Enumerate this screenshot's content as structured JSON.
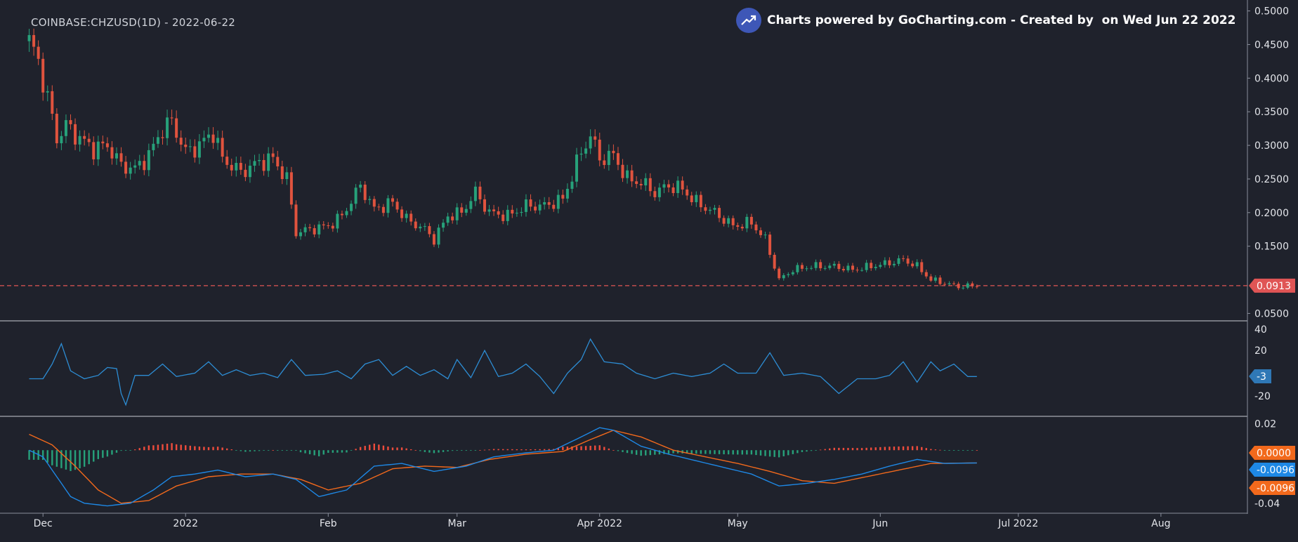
{
  "header": {
    "symbol_title": "COINBASE:CHZUSD(1D) - 2022-06-22",
    "brand_text": "Charts powered by GoCharting.com - Created by  on Wed Jun 22 2022"
  },
  "colors": {
    "background": "#1f222c",
    "up": "#27a17a",
    "down": "#e0533e",
    "price_line": "#e05555",
    "cci": "#2d8dd4",
    "macd": "#1e88e5",
    "signal": "#f2691c",
    "hist_up": "#ee4c3c",
    "hist_down": "#27a17a",
    "axis_text": "#e3e5ea",
    "separator": "#c8ccd4"
  },
  "chart_data": [
    {
      "type": "candlestick",
      "panel": "price",
      "x_labels": [
        "Dec",
        "2022",
        "Feb",
        "Mar",
        "Apr 2022",
        "May",
        "Jun",
        "Jul 2022",
        "Aug"
      ],
      "y_ticks": [
        "0.5000",
        "0.4500",
        "0.4000",
        "0.3500",
        "0.3000",
        "0.2500",
        "0.2000",
        "0.1500",
        "0.0500"
      ],
      "ylim": [
        0.04,
        0.51
      ],
      "last_price_label": "0.0913",
      "last_price": 0.0913,
      "close_path": [
        [
          "2021-11-28",
          0.455
        ],
        [
          "2021-11-30",
          0.425
        ],
        [
          "2021-12-02",
          0.37
        ],
        [
          "2021-12-04",
          0.31
        ],
        [
          "2021-12-06",
          0.33
        ],
        [
          "2021-12-09",
          0.31
        ],
        [
          "2021-12-12",
          0.295
        ],
        [
          "2021-12-15",
          0.3
        ],
        [
          "2021-12-18",
          0.27
        ],
        [
          "2021-12-21",
          0.265
        ],
        [
          "2021-12-24",
          0.285
        ],
        [
          "2021-12-27",
          0.325
        ],
        [
          "2021-12-29",
          0.335
        ],
        [
          "2022-01-01",
          0.29
        ],
        [
          "2022-01-04",
          0.3
        ],
        [
          "2022-01-07",
          0.32
        ],
        [
          "2022-01-09",
          0.28
        ],
        [
          "2022-01-13",
          0.26
        ],
        [
          "2022-01-17",
          0.275
        ],
        [
          "2022-01-20",
          0.28
        ],
        [
          "2022-01-23",
          0.25
        ],
        [
          "2022-01-25",
          0.17
        ],
        [
          "2022-01-28",
          0.175
        ],
        [
          "2022-02-01",
          0.18
        ],
        [
          "2022-02-04",
          0.195
        ],
        [
          "2022-02-08",
          0.24
        ],
        [
          "2022-02-11",
          0.205
        ],
        [
          "2022-02-15",
          0.215
        ],
        [
          "2022-02-18",
          0.19
        ],
        [
          "2022-02-22",
          0.175
        ],
        [
          "2022-02-24",
          0.16
        ],
        [
          "2022-02-27",
          0.195
        ],
        [
          "2022-03-02",
          0.2
        ],
        [
          "2022-03-05",
          0.23
        ],
        [
          "2022-03-08",
          0.2
        ],
        [
          "2022-03-12",
          0.195
        ],
        [
          "2022-03-16",
          0.21
        ],
        [
          "2022-03-20",
          0.21
        ],
        [
          "2022-03-24",
          0.22
        ],
        [
          "2022-03-28",
          0.29
        ],
        [
          "2022-03-30",
          0.315
        ],
        [
          "2022-04-01",
          0.28
        ],
        [
          "2022-04-04",
          0.285
        ],
        [
          "2022-04-07",
          0.25
        ],
        [
          "2022-04-10",
          0.245
        ],
        [
          "2022-04-13",
          0.23
        ],
        [
          "2022-04-16",
          0.24
        ],
        [
          "2022-04-19",
          0.235
        ],
        [
          "2022-04-22",
          0.215
        ],
        [
          "2022-04-26",
          0.2
        ],
        [
          "2022-04-30",
          0.18
        ],
        [
          "2022-05-04",
          0.185
        ],
        [
          "2022-05-07",
          0.16
        ],
        [
          "2022-05-10",
          0.1
        ],
        [
          "2022-05-13",
          0.115
        ],
        [
          "2022-05-17",
          0.12
        ],
        [
          "2022-05-22",
          0.12
        ],
        [
          "2022-05-26",
          0.115
        ],
        [
          "2022-05-30",
          0.12
        ],
        [
          "2022-06-03",
          0.125
        ],
        [
          "2022-06-06",
          0.13
        ],
        [
          "2022-06-09",
          0.12
        ],
        [
          "2022-06-12",
          0.1
        ],
        [
          "2022-06-15",
          0.095
        ],
        [
          "2022-06-18",
          0.09
        ],
        [
          "2022-06-22",
          0.0913
        ]
      ]
    },
    {
      "type": "line",
      "panel": "cci",
      "y_ticks": [
        "40",
        "20",
        "-20"
      ],
      "ylim": [
        -35,
        43
      ],
      "last_value_label": "-3",
      "series": [
        {
          "values": [
            [
              "2021-11-28",
              -5
            ],
            [
              "2021-12-01",
              -5
            ],
            [
              "2021-12-03",
              8
            ],
            [
              "2021-12-05",
              26
            ],
            [
              "2021-12-07",
              2
            ],
            [
              "2021-12-10",
              -5
            ],
            [
              "2021-12-13",
              -2
            ],
            [
              "2021-12-15",
              5
            ],
            [
              "2021-12-17",
              4
            ],
            [
              "2021-12-18",
              -18
            ],
            [
              "2021-12-19",
              -28
            ],
            [
              "2021-12-21",
              -2
            ],
            [
              "2021-12-24",
              -2
            ],
            [
              "2021-12-27",
              8
            ],
            [
              "2021-12-30",
              -3
            ],
            [
              "2022-01-03",
              0
            ],
            [
              "2022-01-06",
              10
            ],
            [
              "2022-01-09",
              -2
            ],
            [
              "2022-01-12",
              3
            ],
            [
              "2022-01-15",
              -2
            ],
            [
              "2022-01-18",
              0
            ],
            [
              "2022-01-21",
              -4
            ],
            [
              "2022-01-24",
              12
            ],
            [
              "2022-01-27",
              -2
            ],
            [
              "2022-01-31",
              -1
            ],
            [
              "2022-02-03",
              2
            ],
            [
              "2022-02-06",
              -5
            ],
            [
              "2022-02-09",
              8
            ],
            [
              "2022-02-12",
              12
            ],
            [
              "2022-02-15",
              -2
            ],
            [
              "2022-02-18",
              6
            ],
            [
              "2022-02-21",
              -2
            ],
            [
              "2022-02-24",
              3
            ],
            [
              "2022-02-27",
              -5
            ],
            [
              "2022-03-01",
              12
            ],
            [
              "2022-03-04",
              -4
            ],
            [
              "2022-03-07",
              20
            ],
            [
              "2022-03-10",
              -3
            ],
            [
              "2022-03-13",
              0
            ],
            [
              "2022-03-16",
              8
            ],
            [
              "2022-03-19",
              -3
            ],
            [
              "2022-03-22",
              -18
            ],
            [
              "2022-03-25",
              0
            ],
            [
              "2022-03-28",
              12
            ],
            [
              "2022-03-30",
              30
            ],
            [
              "2022-04-02",
              10
            ],
            [
              "2022-04-06",
              8
            ],
            [
              "2022-04-09",
              0
            ],
            [
              "2022-04-13",
              -5
            ],
            [
              "2022-04-17",
              0
            ],
            [
              "2022-04-21",
              -3
            ],
            [
              "2022-04-25",
              0
            ],
            [
              "2022-04-28",
              8
            ],
            [
              "2022-05-01",
              0
            ],
            [
              "2022-05-05",
              0
            ],
            [
              "2022-05-08",
              18
            ],
            [
              "2022-05-11",
              -2
            ],
            [
              "2022-05-15",
              0
            ],
            [
              "2022-05-19",
              -3
            ],
            [
              "2022-05-23",
              -18
            ],
            [
              "2022-05-27",
              -5
            ],
            [
              "2022-05-31",
              -5
            ],
            [
              "2022-06-03",
              -2
            ],
            [
              "2022-06-06",
              10
            ],
            [
              "2022-06-09",
              -8
            ],
            [
              "2022-06-12",
              10
            ],
            [
              "2022-06-14",
              2
            ],
            [
              "2022-06-17",
              8
            ],
            [
              "2022-06-20",
              -3
            ],
            [
              "2022-06-22",
              -3
            ]
          ]
        }
      ]
    },
    {
      "type": "line+histogram",
      "panel": "macd",
      "y_ticks": [
        "0.02",
        "-0.04"
      ],
      "ylim": [
        -0.047,
        0.025
      ],
      "labels": {
        "histogram": "0.0000",
        "macd": "-0.0096",
        "signal": "-0.0096"
      },
      "series": [
        {
          "values": [
            [
              "2021-11-28",
              0.0
            ],
            [
              "2021-12-01",
              -0.005
            ],
            [
              "2021-12-04",
              -0.02
            ],
            [
              "2021-12-07",
              -0.035
            ],
            [
              "2021-12-10",
              -0.04
            ],
            [
              "2021-12-15",
              -0.042
            ],
            [
              "2021-12-20",
              -0.04
            ],
            [
              "2021-12-25",
              -0.03
            ],
            [
              "2021-12-29",
              -0.02
            ],
            [
              "2022-01-03",
              -0.018
            ],
            [
              "2022-01-08",
              -0.015
            ],
            [
              "2022-01-14",
              -0.02
            ],
            [
              "2022-01-20",
              -0.018
            ],
            [
              "2022-01-25",
              -0.022
            ],
            [
              "2022-01-30",
              -0.035
            ],
            [
              "2022-02-05",
              -0.03
            ],
            [
              "2022-02-11",
              -0.012
            ],
            [
              "2022-02-17",
              -0.01
            ],
            [
              "2022-02-24",
              -0.016
            ],
            [
              "2022-03-03",
              -0.012
            ],
            [
              "2022-03-09",
              -0.005
            ],
            [
              "2022-03-16",
              -0.002
            ],
            [
              "2022-03-22",
              0.0
            ],
            [
              "2022-03-28",
              0.01
            ],
            [
              "2022-04-01",
              0.017
            ],
            [
              "2022-04-04",
              0.015
            ],
            [
              "2022-04-10",
              0.003
            ],
            [
              "2022-04-16",
              -0.003
            ],
            [
              "2022-04-22",
              -0.008
            ],
            [
              "2022-04-28",
              -0.013
            ],
            [
              "2022-05-04",
              -0.018
            ],
            [
              "2022-05-10",
              -0.027
            ],
            [
              "2022-05-16",
              -0.025
            ],
            [
              "2022-05-22",
              -0.022
            ],
            [
              "2022-05-28",
              -0.018
            ],
            [
              "2022-06-03",
              -0.012
            ],
            [
              "2022-06-09",
              -0.007
            ],
            [
              "2022-06-15",
              -0.01
            ],
            [
              "2022-06-22",
              -0.0096
            ]
          ]
        },
        {
          "values": [
            [
              "2021-11-28",
              0.012
            ],
            [
              "2021-12-03",
              0.004
            ],
            [
              "2021-12-08",
              -0.012
            ],
            [
              "2021-12-13",
              -0.03
            ],
            [
              "2021-12-18",
              -0.04
            ],
            [
              "2021-12-24",
              -0.038
            ],
            [
              "2021-12-30",
              -0.027
            ],
            [
              "2022-01-06",
              -0.02
            ],
            [
              "2022-01-13",
              -0.018
            ],
            [
              "2022-01-20",
              -0.018
            ],
            [
              "2022-01-26",
              -0.022
            ],
            [
              "2022-02-01",
              -0.03
            ],
            [
              "2022-02-08",
              -0.025
            ],
            [
              "2022-02-15",
              -0.014
            ],
            [
              "2022-02-22",
              -0.012
            ],
            [
              "2022-03-01",
              -0.013
            ],
            [
              "2022-03-08",
              -0.007
            ],
            [
              "2022-03-16",
              -0.003
            ],
            [
              "2022-03-24",
              -0.001
            ],
            [
              "2022-03-30",
              0.008
            ],
            [
              "2022-04-04",
              0.015
            ],
            [
              "2022-04-10",
              0.01
            ],
            [
              "2022-04-17",
              0.0
            ],
            [
              "2022-04-24",
              -0.005
            ],
            [
              "2022-05-01",
              -0.01
            ],
            [
              "2022-05-08",
              -0.016
            ],
            [
              "2022-05-15",
              -0.023
            ],
            [
              "2022-05-22",
              -0.025
            ],
            [
              "2022-05-29",
              -0.02
            ],
            [
              "2022-06-05",
              -0.015
            ],
            [
              "2022-06-12",
              -0.01
            ],
            [
              "2022-06-22",
              -0.0096
            ]
          ]
        }
      ]
    }
  ]
}
